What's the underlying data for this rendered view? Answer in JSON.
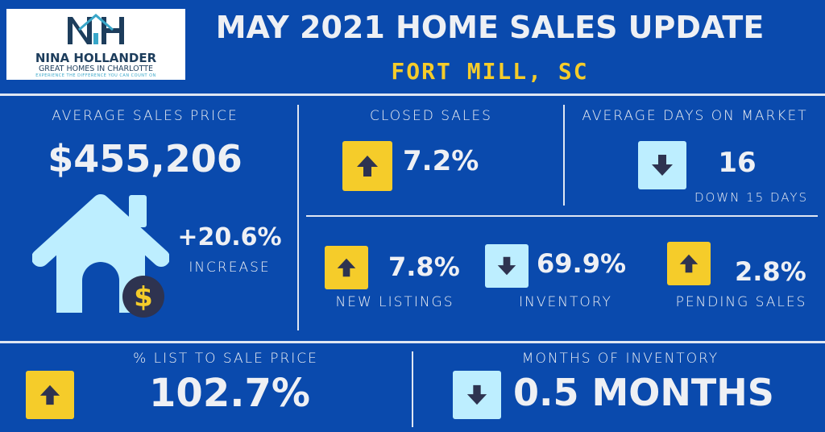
{
  "logo": {
    "name": "NINA HOLLANDER",
    "tagline": "GREAT HOMES IN CHARLOTTE",
    "slogan": "EXPERIENCE THE DIFFERENCE YOU CAN COUNT ON",
    "monogram": "NH"
  },
  "header": {
    "title": "MAY 2021 HOME SALES UPDATE",
    "location": "FORT MILL, SC"
  },
  "avg_price": {
    "label": "AVERAGE SALES PRICE",
    "value": "$455,206",
    "change": "+20.6%",
    "change_label": "INCREASE"
  },
  "closed": {
    "label": "CLOSED SALES",
    "value": "7.2%",
    "direction": "up"
  },
  "dom": {
    "label": "AVERAGE DAYS ON MARKET",
    "value": "16",
    "sub": "DOWN 15 DAYS",
    "direction": "down"
  },
  "new_listings": {
    "label": "NEW LISTINGS",
    "value": "7.8%",
    "direction": "up"
  },
  "inventory": {
    "label": "INVENTORY",
    "value": "69.9%",
    "direction": "down"
  },
  "pending": {
    "label": "PENDING SALES",
    "value": "2.8%",
    "direction": "up"
  },
  "list_to_sale": {
    "label": "% LIST TO SALE PRICE",
    "value": "102.7%",
    "direction": "up"
  },
  "months": {
    "label": "MONTHS OF INVENTORY",
    "value": "0.5 MONTHS",
    "direction": "down"
  },
  "colors": {
    "background": "#0a4aad",
    "up": "#f5cc2a",
    "down": "#bdeeff",
    "arrow": "#2e3350",
    "accent": "#f5cc2a"
  }
}
